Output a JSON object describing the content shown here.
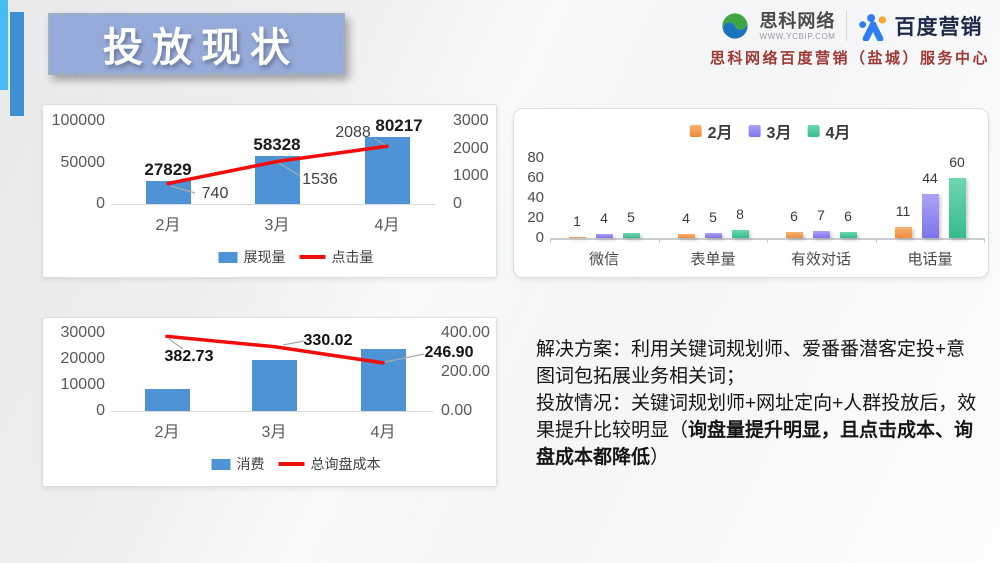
{
  "slide": {
    "title": "投放现状",
    "header": {
      "sike_name": "思科网络",
      "sike_url": "WWW.YCBIP.COM",
      "baidu_name": "百度营销",
      "subtitle": "思科网络百度营销（盐城）服务中心"
    },
    "solution": {
      "line1": "解决方案：利用关键词规划师、爱番番潜客定投+意图词包拓展业务相关词；",
      "line2_prefix": "投放情况：关键词规划师+网址定向+人群投放后，效果提升比较明显（",
      "line2_bold": "询盘量提升明显，且点击成本、询盘成本都降低",
      "line2_suffix": "）"
    },
    "colors": {
      "bar_blue": "#4D93D5",
      "line_red": "#F20D0D",
      "feb_orange": "#F08A38",
      "mar_purple": "#7D74EC",
      "apr_green": "#36BC8B",
      "title_banner_blue": "#96AADA",
      "accent_light_blue": "#45BCF2",
      "accent_blue": "#3E8FD2",
      "subtitle_red": "#9E3832"
    }
  },
  "chart_data": [
    {
      "id": "impressions_clicks",
      "type": "bar+line",
      "title": "",
      "categories": [
        "2月",
        "3月",
        "4月"
      ],
      "series": [
        {
          "name": "展现量",
          "type": "bar",
          "axis": "left",
          "values": [
            27829,
            58328,
            80217
          ],
          "labels": [
            "27829",
            "58328",
            "80217"
          ],
          "color": "#4D93D5"
        },
        {
          "name": "点击量",
          "type": "line",
          "axis": "right",
          "values": [
            740,
            1536,
            2088
          ],
          "labels": [
            "740",
            "1536",
            "2088"
          ],
          "color": "#F20D0D"
        }
      ],
      "left_axis": {
        "max": 100000,
        "ticks": [
          "100000",
          "50000",
          "0"
        ]
      },
      "right_axis": {
        "max": 3000,
        "ticks": [
          "3000",
          "2000",
          "1000",
          "0"
        ]
      },
      "legend": [
        "展现量",
        "点击量"
      ],
      "legend_position": "bottom",
      "grid": false
    },
    {
      "id": "conversions_by_channel",
      "type": "grouped_bar",
      "title": "",
      "categories": [
        "微信",
        "表单量",
        "有效对话",
        "电话量"
      ],
      "series": [
        {
          "name": "2月",
          "values": [
            1,
            4,
            6,
            11
          ],
          "color": "#F08A38",
          "color_light": "#F8B272"
        },
        {
          "name": "3月",
          "values": [
            4,
            5,
            7,
            44
          ],
          "color": "#7D74EC",
          "color_light": "#ABA4F4"
        },
        {
          "name": "4月",
          "values": [
            5,
            8,
            6,
            60
          ],
          "color": "#36BC8B",
          "color_light": "#6FD6AE"
        }
      ],
      "y_axis": {
        "max": 80,
        "ticks": [
          "80",
          "60",
          "40",
          "20",
          "0"
        ]
      },
      "legend": [
        "2月",
        "3月",
        "4月"
      ],
      "legend_position": "top",
      "grid": false
    },
    {
      "id": "spend_inquiry_cost",
      "type": "bar+line",
      "title": "",
      "categories": [
        "2月",
        "3月",
        "4月"
      ],
      "series": [
        {
          "name": "消费",
          "type": "bar",
          "axis": "left",
          "values": [
            8420,
            19800,
            23950
          ],
          "labels": null,
          "color": "#4D93D5"
        },
        {
          "name": "总询盘成本",
          "type": "line",
          "axis": "right",
          "values": [
            382.73,
            330.02,
            246.9
          ],
          "labels": [
            "382.73",
            "330.02",
            "246.90"
          ],
          "color": "#F20D0D"
        }
      ],
      "left_axis": {
        "max": 30000,
        "ticks": [
          "30000",
          "20000",
          "10000",
          "0"
        ]
      },
      "right_axis": {
        "max": 400,
        "ticks": [
          "400.00",
          "200.00",
          "0.00"
        ]
      },
      "legend": [
        "消费",
        "总询盘成本"
      ],
      "legend_position": "bottom",
      "grid": false
    }
  ]
}
